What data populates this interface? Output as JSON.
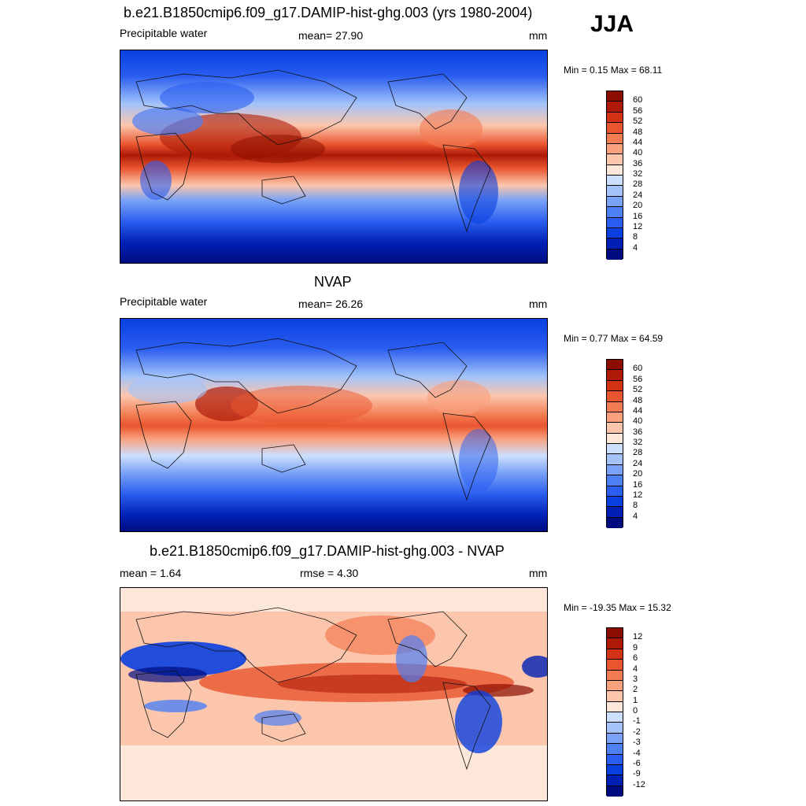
{
  "season": "JJA",
  "panels": [
    {
      "title": "b.e21.B1850cmip6.f09_g17.DAMIP-hist-ghg.003 (yrs 1980-2004)",
      "left": "Precipitable water",
      "center": "mean=  27.90",
      "right": "mm",
      "minmax": "Min =   0.15 Max =  68.11",
      "colors": [
        "#000b7f",
        "#0020b3",
        "#0a3fe0",
        "#2a5ef0",
        "#4d7ff5",
        "#7aa2f7",
        "#a3c3fa",
        "#cce0fd",
        "#fde7da",
        "#fcc6ad",
        "#f9a07d",
        "#f47c52",
        "#e9552e",
        "#d23314",
        "#ae1a07",
        "#8a0d00"
      ],
      "labels": [
        "4",
        "8",
        "12",
        "16",
        "20",
        "24",
        "28",
        "32",
        "36",
        "40",
        "44",
        "48",
        "52",
        "56",
        "60"
      ]
    },
    {
      "title": "NVAP",
      "left": "Precipitable water",
      "center": "mean=  26.26",
      "right": "mm",
      "minmax": "Min =   0.77 Max =  64.59",
      "colors": [
        "#000b7f",
        "#0020b3",
        "#0a3fe0",
        "#2a5ef0",
        "#4d7ff5",
        "#7aa2f7",
        "#a3c3fa",
        "#cce0fd",
        "#fde7da",
        "#fcc6ad",
        "#f9a07d",
        "#f47c52",
        "#e9552e",
        "#d23314",
        "#ae1a07",
        "#8a0d00"
      ],
      "labels": [
        "4",
        "8",
        "12",
        "16",
        "20",
        "24",
        "28",
        "32",
        "36",
        "40",
        "44",
        "48",
        "52",
        "56",
        "60"
      ]
    },
    {
      "title": "b.e21.B1850cmip6.f09_g17.DAMIP-hist-ghg.003 - NVAP",
      "left": "mean =   1.64",
      "center": "rmse =   4.30",
      "right": "mm",
      "minmax": "Min = -19.35 Max =  15.32",
      "colors": [
        "#000b7f",
        "#0020b3",
        "#0a3fe0",
        "#2a5ef0",
        "#4d7ff5",
        "#7aa2f7",
        "#a3c3fa",
        "#cce0fd",
        "#fde7da",
        "#fcc6ad",
        "#f9a07d",
        "#f47c52",
        "#e9552e",
        "#d23314",
        "#ae1a07",
        "#8a0d00"
      ],
      "labels": [
        "-12",
        "-9",
        "-6",
        "-4",
        "-3",
        "-2",
        "-1",
        "0",
        "1",
        "2",
        "3",
        "4",
        "6",
        "9",
        "12"
      ]
    }
  ]
}
